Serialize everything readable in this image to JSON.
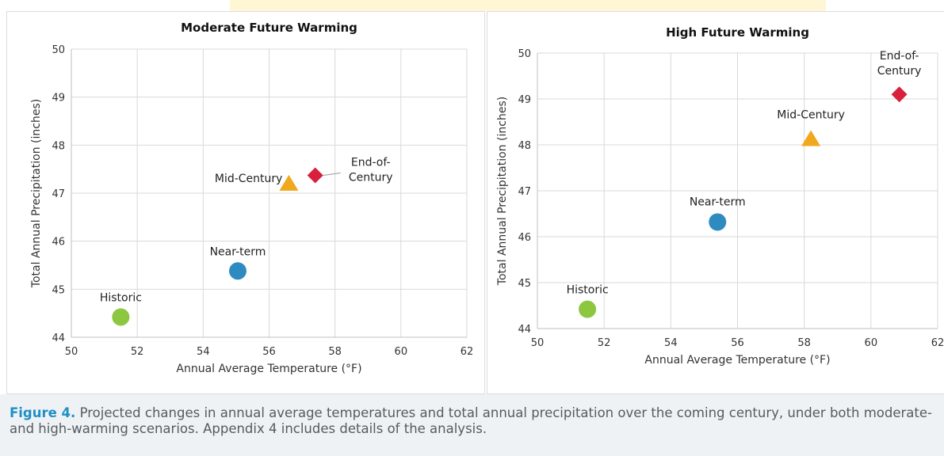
{
  "chart_data": [
    {
      "type": "scatter",
      "title": "Moderate Future Warming",
      "xlabel": "Annual Average Temperature (°F)",
      "ylabel": "Total Annual Precipitation (inches)",
      "xlim": [
        50,
        62
      ],
      "ylim": [
        44,
        50
      ],
      "xticks": [
        "50",
        "52",
        "54",
        "56",
        "58",
        "60",
        "62"
      ],
      "yticks": [
        "44",
        "45",
        "46",
        "47",
        "48",
        "49",
        "50"
      ],
      "grid": true,
      "points": [
        {
          "label": "Historic",
          "x": 51.5,
          "y": 44.42,
          "marker": "circle",
          "color": "#8dc63f"
        },
        {
          "label": "Near-term",
          "x": 55.05,
          "y": 45.38,
          "marker": "circle",
          "color": "#2e8bc0"
        },
        {
          "label": "Mid-Century",
          "x": 56.6,
          "y": 47.2,
          "marker": "triangle",
          "color": "#f0a81c"
        },
        {
          "label": "End-of-Century",
          "x": 57.4,
          "y": 47.37,
          "marker": "diamond",
          "color": "#d91f3c"
        }
      ]
    },
    {
      "type": "scatter",
      "title": "High Future Warming",
      "xlabel": "Annual Average Temperature (°F)",
      "ylabel": "Total Annual Precipitation (inches)",
      "xlim": [
        50,
        62
      ],
      "ylim": [
        44,
        50
      ],
      "xticks": [
        "50",
        "52",
        "54",
        "56",
        "58",
        "60",
        "62"
      ],
      "yticks": [
        "44",
        "45",
        "46",
        "47",
        "48",
        "49",
        "50"
      ],
      "grid": true,
      "points": [
        {
          "label": "Historic",
          "x": 51.5,
          "y": 44.42,
          "marker": "circle",
          "color": "#8dc63f"
        },
        {
          "label": "Near-term",
          "x": 55.4,
          "y": 46.32,
          "marker": "circle",
          "color": "#2e8bc0"
        },
        {
          "label": "Mid-Century",
          "x": 58.2,
          "y": 48.13,
          "marker": "triangle",
          "color": "#f0a81c"
        },
        {
          "label": "End-of-Century",
          "x": 60.85,
          "y": 49.1,
          "marker": "diamond",
          "color": "#d91f3c"
        }
      ]
    }
  ],
  "caption": {
    "label": "Figure 4.",
    "text": "Projected changes in annual average temperatures and total annual precipitation over the coming century, under both moderate- and high-warming scenarios. Appendix 4 includes details of the analysis."
  }
}
